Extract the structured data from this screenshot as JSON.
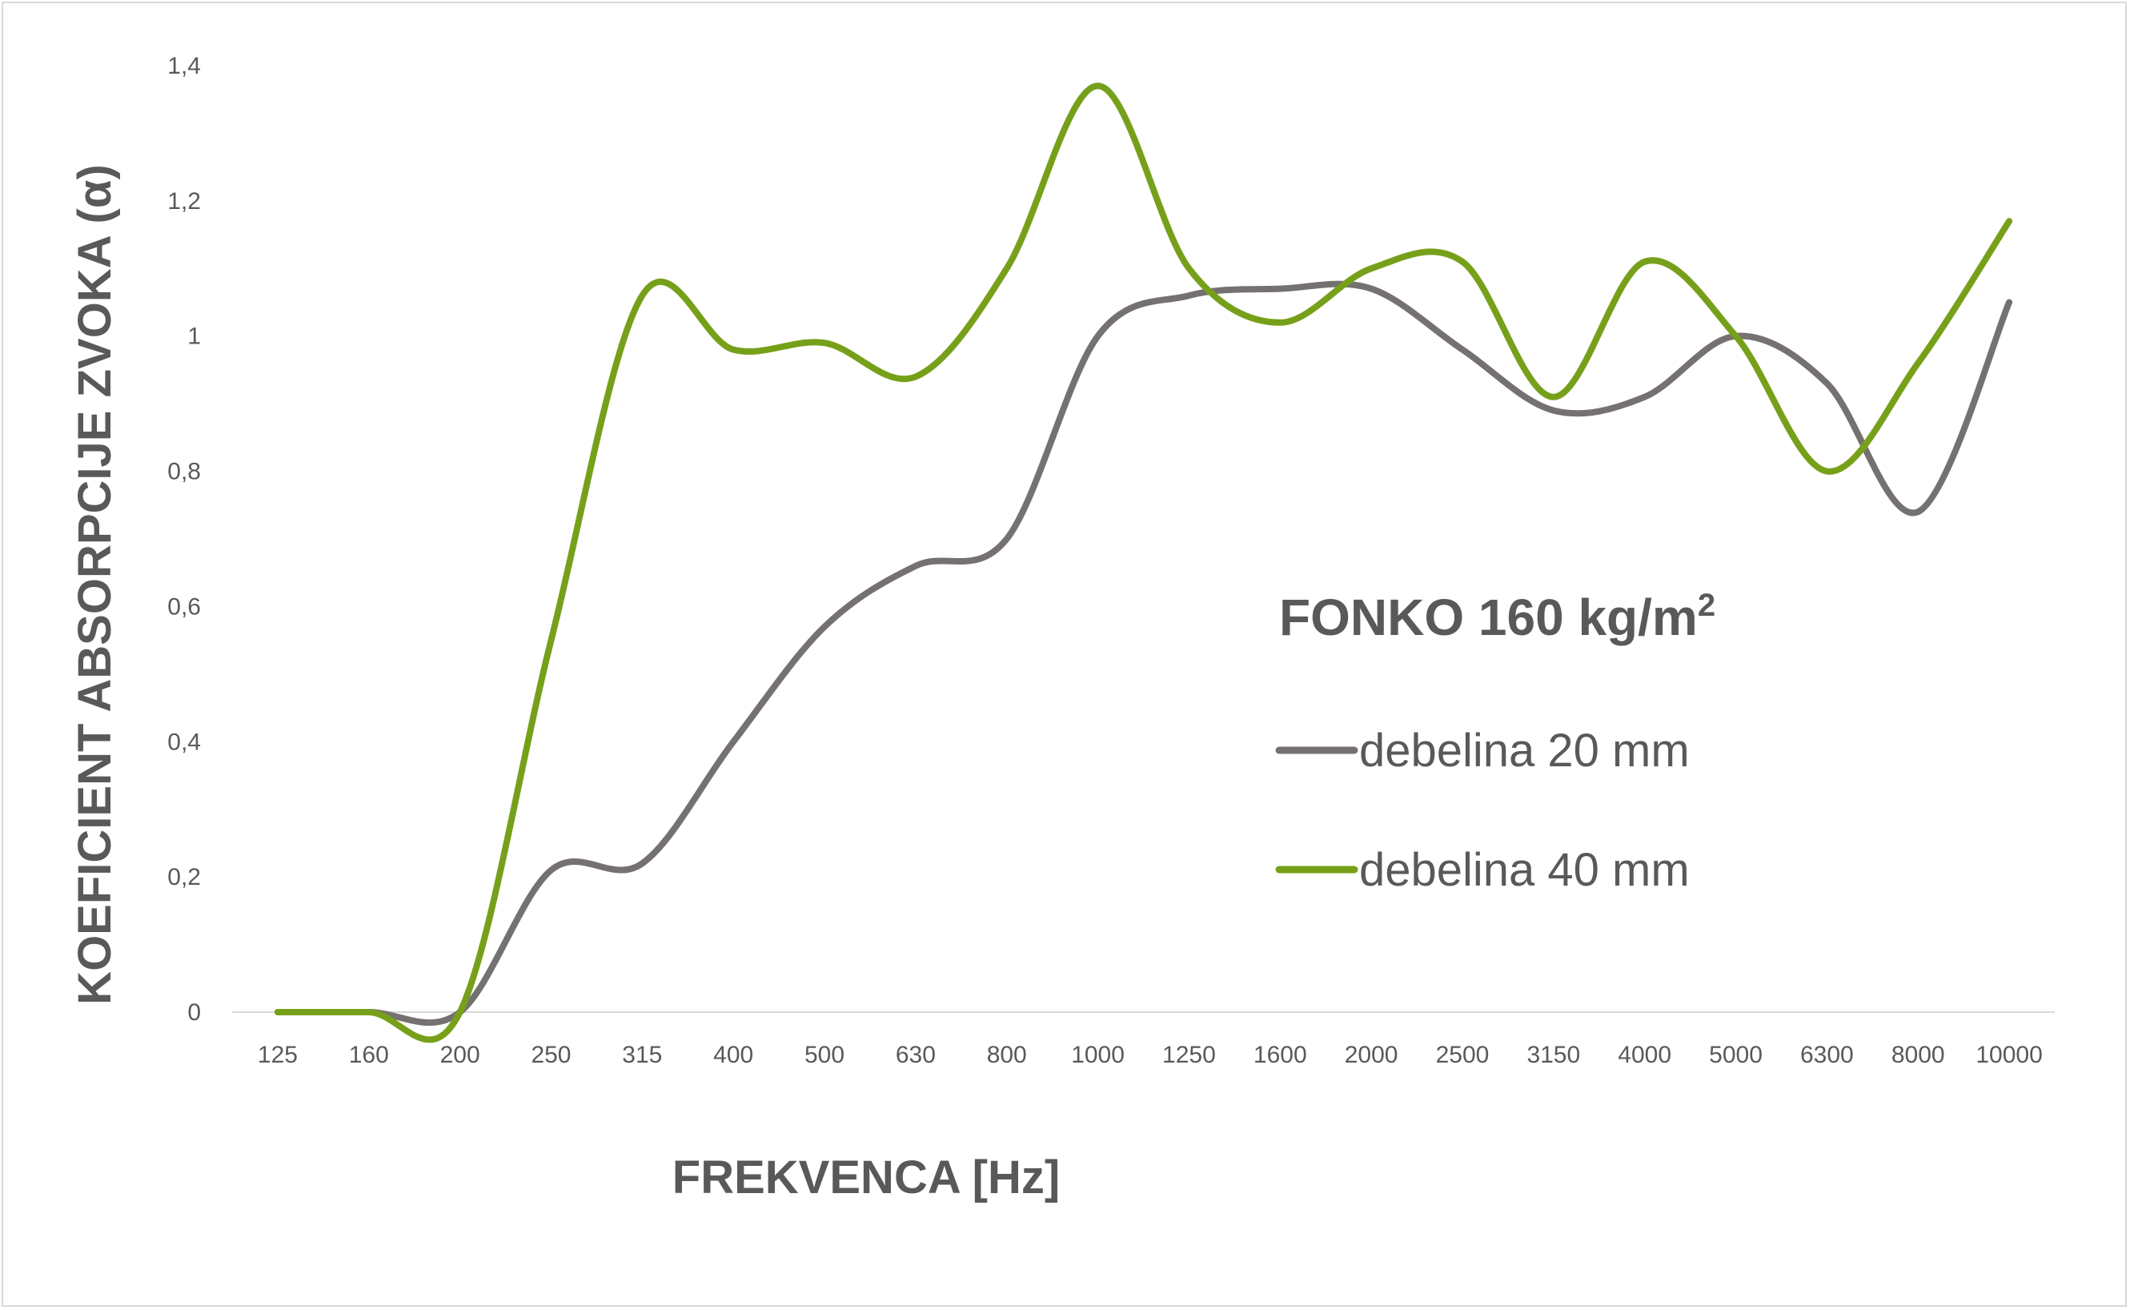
{
  "chart_data": {
    "type": "line",
    "title": "",
    "xlabel": "FREKVENCA [Hz]",
    "ylabel": "KOEFICIENT ABSORPCIJE ZVOKA (α)",
    "ylim": [
      0,
      1.4
    ],
    "yticks": [
      "0",
      "0,2",
      "0,4",
      "0,6",
      "0,8",
      "1",
      "1,2",
      "1,4"
    ],
    "categories": [
      "125",
      "160",
      "200",
      "250",
      "315",
      "400",
      "500",
      "630",
      "800",
      "1000",
      "1250",
      "1600",
      "2000",
      "2500",
      "3150",
      "4000",
      "5000",
      "6300",
      "8000",
      "10000"
    ],
    "grid": false,
    "legend_position": "right",
    "legend_title": "FONKO 160 kg/m",
    "legend_title_sup": "2",
    "series": [
      {
        "name": "debelina 20 mm",
        "color": "#767171",
        "values": [
          0,
          0,
          0,
          0.21,
          0.22,
          0.4,
          0.57,
          0.66,
          0.7,
          1.0,
          1.06,
          1.07,
          1.07,
          0.98,
          0.89,
          0.91,
          1.0,
          0.93,
          0.74,
          1.05
        ]
      },
      {
        "name": "debelina 40 mm",
        "color": "#77A01A",
        "values": [
          0,
          0,
          0,
          0.55,
          1.06,
          0.98,
          0.99,
          0.94,
          1.1,
          1.37,
          1.1,
          1.02,
          1.1,
          1.11,
          0.91,
          1.11,
          1.0,
          0.8,
          0.96,
          1.17
        ]
      }
    ]
  }
}
